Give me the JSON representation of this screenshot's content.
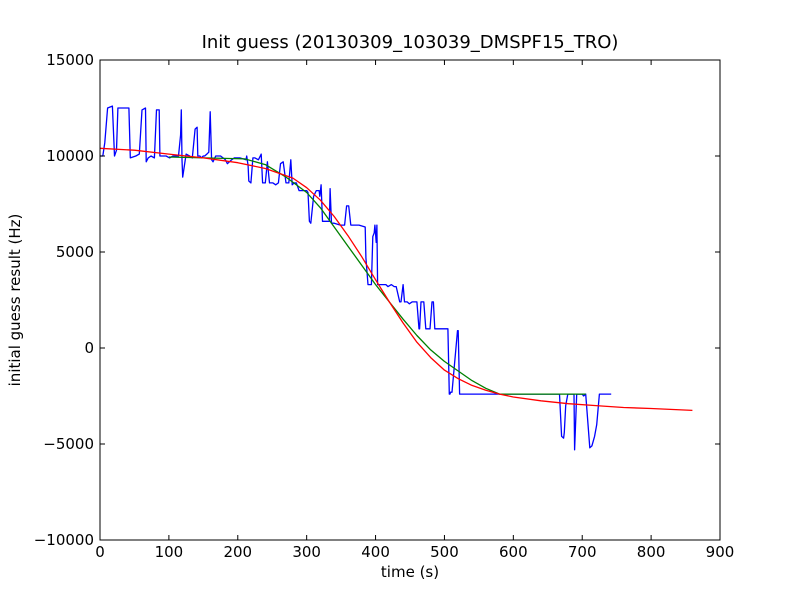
{
  "chart_data": {
    "type": "line",
    "title": "Init guess (20130309_103039_DMSPF15_TRO)",
    "xlabel": "time (s)",
    "ylabel": "initial guess result (Hz)",
    "xlim": [
      0,
      900
    ],
    "ylim": [
      -10000,
      15000
    ],
    "xticks": [
      0,
      100,
      200,
      300,
      400,
      500,
      600,
      700,
      800,
      900
    ],
    "yticks": [
      -10000,
      -5000,
      0,
      5000,
      10000,
      15000
    ],
    "xtick_labels": [
      "0",
      "100",
      "200",
      "300",
      "400",
      "500",
      "600",
      "700",
      "800",
      "900"
    ],
    "ytick_labels": [
      "−10000",
      "−5000",
      "0",
      "5000",
      "10000",
      "15000"
    ],
    "grid": false,
    "legend": "none",
    "series": [
      {
        "color": "#0000ff",
        "x": [
          0,
          4,
          7,
          11,
          18,
          21,
          24,
          26,
          30,
          42,
          44,
          52,
          57,
          61,
          66,
          67,
          70,
          74,
          79,
          82,
          86,
          87,
          91,
          96,
          101,
          106,
          114,
          117,
          118,
          119,
          120,
          125,
          130,
          134,
          138,
          141,
          142,
          145,
          147,
          150,
          152,
          155,
          158,
          160,
          162,
          164,
          168,
          175,
          182,
          185,
          191,
          195,
          203,
          212,
          213,
          215,
          216,
          219,
          222,
          225,
          230,
          234,
          236,
          240,
          243,
          246,
          249,
          251,
          255,
          259,
          262,
          266,
          270,
          274,
          277,
          279,
          282,
          285,
          289,
          293,
          297,
          300,
          302,
          304,
          306,
          310,
          314,
          318,
          319,
          321,
          323,
          333,
          334,
          336,
          340,
          349,
          355,
          358,
          361,
          364,
          368,
          376,
          385,
          386,
          389,
          391,
          394,
          396,
          398,
          399,
          401,
          402,
          403,
          407,
          412,
          415,
          418,
          423,
          427,
          430,
          435,
          437,
          440,
          442,
          444,
          446,
          449,
          453,
          460,
          463,
          464,
          466,
          470,
          473,
          479,
          482,
          484,
          486,
          505,
          507,
          508,
          509,
          511,
          519,
          520,
          522,
          523,
          534,
          565,
          590,
          612,
          630,
          660,
          665,
          667,
          670,
          673,
          674,
          676,
          679,
          684,
          688,
          689,
          692,
          700,
          702,
          705,
          711,
          714,
          718,
          721,
          725,
          742
        ],
        "y": [
          10000,
          10000,
          10700,
          12500,
          12600,
          10000,
          10300,
          12500,
          12500,
          12500,
          9900,
          10000,
          10100,
          12400,
          12500,
          9700,
          9900,
          10000,
          9900,
          12400,
          12400,
          10000,
          10000,
          10000,
          9900,
          10000,
          10000,
          11100,
          12400,
          9800,
          8900,
          10100,
          10000,
          9900,
          11400,
          11500,
          10000,
          10000,
          9900,
          10000,
          10000,
          10100,
          10200,
          12300,
          9800,
          9700,
          10000,
          10000,
          9800,
          9600,
          9800,
          9900,
          9900,
          9800,
          10000,
          9500,
          8700,
          8600,
          9900,
          9900,
          9800,
          10100,
          8600,
          8600,
          9700,
          8600,
          8600,
          8600,
          8500,
          8600,
          9600,
          9700,
          8600,
          8600,
          9800,
          8500,
          8600,
          8600,
          8200,
          8200,
          8200,
          8200,
          8100,
          6600,
          6500,
          7900,
          8200,
          8200,
          7900,
          8500,
          6600,
          6600,
          8300,
          6500,
          6500,
          6400,
          6400,
          7400,
          7400,
          6400,
          6400,
          6400,
          6300,
          4700,
          3300,
          3300,
          3300,
          5800,
          6000,
          6400,
          5500,
          6400,
          3300,
          3300,
          3300,
          3300,
          3200,
          3300,
          3200,
          3200,
          2400,
          2400,
          3300,
          2400,
          2400,
          2400,
          2300,
          2400,
          2400,
          1000,
          1000,
          2400,
          2400,
          1000,
          1000,
          2400,
          2400,
          1000,
          1000,
          -2400,
          -2400,
          -2300,
          -2300,
          900,
          900,
          -2400,
          -2400,
          -2400,
          -2400,
          -2400,
          -2400,
          -2400,
          -2400,
          -2400,
          -2400,
          -4600,
          -4700,
          -4400,
          -3000,
          -2400,
          -2400,
          -2400,
          -5300,
          -2400,
          -2400,
          -2500,
          -2400,
          -5200,
          -5100,
          -4600,
          -4000,
          -2400,
          -2400
        ]
      },
      {
        "color": "#008000",
        "x": [
          100,
          210,
          240,
          270,
          300,
          320,
          340,
          360,
          380,
          400,
          420,
          440,
          460,
          480,
          500,
          520,
          540,
          560,
          580,
          650,
          705
        ],
        "y": [
          9950,
          9850,
          9550,
          8900,
          8100,
          7300,
          6300,
          5300,
          4300,
          3300,
          2400,
          1500,
          650,
          -100,
          -700,
          -1200,
          -1700,
          -2100,
          -2400,
          -2400,
          -2400
        ]
      },
      {
        "color": "#ff0000",
        "x": [
          0,
          50,
          100,
          150,
          200,
          240,
          280,
          300,
          320,
          340,
          360,
          380,
          400,
          420,
          440,
          460,
          480,
          500,
          520,
          540,
          560,
          580,
          600,
          640,
          680,
          720,
          760,
          800,
          860
        ],
        "y": [
          10400,
          10300,
          10100,
          9900,
          9650,
          9350,
          8850,
          8350,
          7700,
          6850,
          5850,
          4750,
          3550,
          2400,
          1300,
          300,
          -500,
          -1150,
          -1600,
          -1950,
          -2200,
          -2400,
          -2550,
          -2750,
          -2900,
          -3000,
          -3100,
          -3150,
          -3250
        ]
      }
    ]
  }
}
